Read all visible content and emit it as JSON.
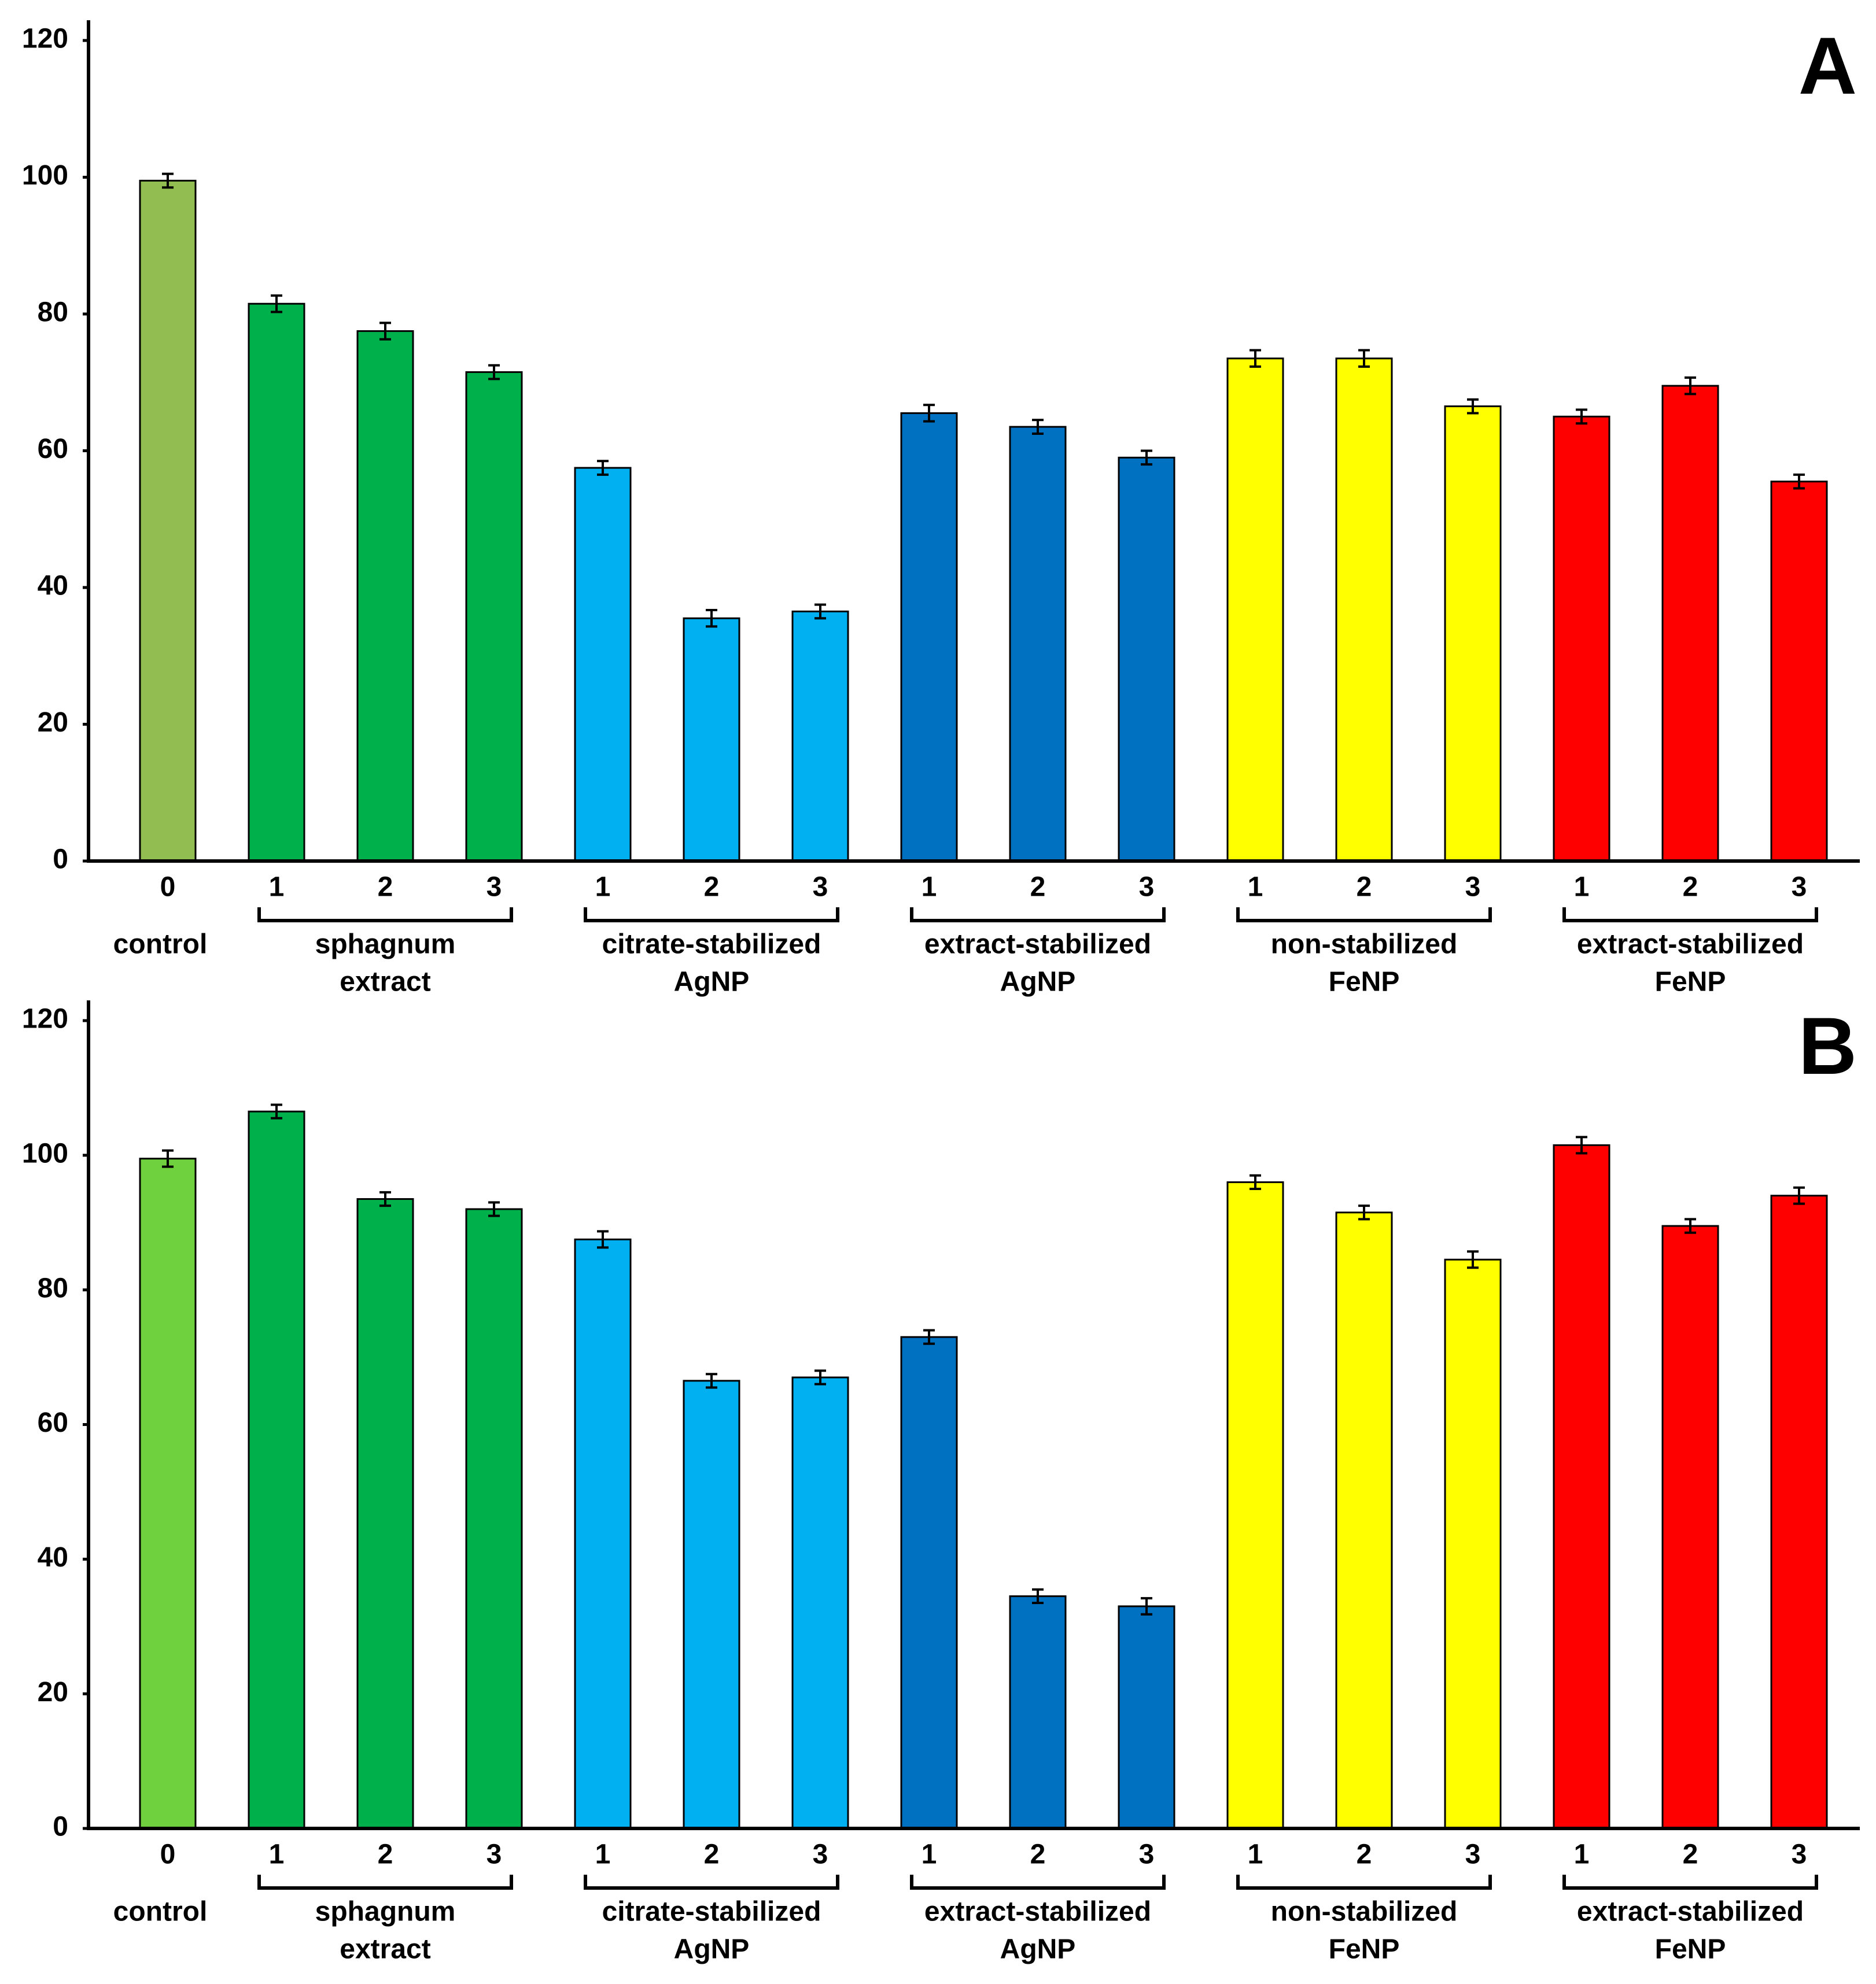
{
  "chart_data": [
    {
      "type": "bar",
      "panel_label": "A",
      "ylim": [
        0,
        120
      ],
      "yticks": [
        0,
        20,
        40,
        60,
        80,
        100,
        120
      ],
      "groups": [
        {
          "label": [
            "control"
          ],
          "categories": [
            "0"
          ],
          "values": [
            99.5
          ],
          "errors": [
            1
          ],
          "color": "#92bd50"
        },
        {
          "label": [
            "sphagnum",
            "extract"
          ],
          "categories": [
            "1",
            "2",
            "3"
          ],
          "values": [
            81.5,
            77.5,
            71.5
          ],
          "errors": [
            1.2,
            1.2,
            1
          ],
          "color": "#00b04a"
        },
        {
          "label": [
            "citrate-stabilized",
            "AgNP"
          ],
          "categories": [
            "1",
            "2",
            "3"
          ],
          "values": [
            57.5,
            35.5,
            36.5
          ],
          "errors": [
            1,
            1.2,
            1
          ],
          "color": "#00b0f0"
        },
        {
          "label": [
            "extract-stabilized",
            "AgNP"
          ],
          "categories": [
            "1",
            "2",
            "3"
          ],
          "values": [
            65.5,
            63.5,
            59
          ],
          "errors": [
            1.2,
            1,
            1
          ],
          "color": "#0070c0"
        },
        {
          "label": [
            "non-stabilized",
            "FeNP"
          ],
          "categories": [
            "1",
            "2",
            "3"
          ],
          "values": [
            73.5,
            73.5,
            66.5
          ],
          "errors": [
            1.2,
            1.2,
            1
          ],
          "color": "#ffff00"
        },
        {
          "label": [
            "extract-stabilized",
            "FeNP"
          ],
          "categories": [
            "1",
            "2",
            "3"
          ],
          "values": [
            65,
            69.5,
            55.5
          ],
          "errors": [
            1,
            1.2,
            1
          ],
          "color": "#ff0000"
        }
      ]
    },
    {
      "type": "bar",
      "panel_label": "B",
      "ylim": [
        0,
        120
      ],
      "yticks": [
        0,
        20,
        40,
        60,
        80,
        100,
        120
      ],
      "groups": [
        {
          "label": [
            "control"
          ],
          "categories": [
            "0"
          ],
          "values": [
            99.5
          ],
          "errors": [
            1.2
          ],
          "color": "#6fd13e"
        },
        {
          "label": [
            "sphagnum",
            "extract"
          ],
          "categories": [
            "1",
            "2",
            "3"
          ],
          "values": [
            106.5,
            93.5,
            92
          ],
          "errors": [
            1,
            1,
            1
          ],
          "color": "#00b04a"
        },
        {
          "label": [
            "citrate-stabilized",
            "AgNP"
          ],
          "categories": [
            "1",
            "2",
            "3"
          ],
          "values": [
            87.5,
            66.5,
            67
          ],
          "errors": [
            1.2,
            1,
            1
          ],
          "color": "#00b0f0"
        },
        {
          "label": [
            "extract-stabilized",
            "AgNP"
          ],
          "categories": [
            "1",
            "2",
            "3"
          ],
          "values": [
            73,
            34.5,
            33
          ],
          "errors": [
            1,
            1,
            1.2
          ],
          "color": "#0070c0"
        },
        {
          "label": [
            "non-stabilized",
            "FeNP"
          ],
          "categories": [
            "1",
            "2",
            "3"
          ],
          "values": [
            96,
            91.5,
            84.5
          ],
          "errors": [
            1,
            1,
            1.2
          ],
          "color": "#ffff00"
        },
        {
          "label": [
            "extract-stabilized",
            "FeNP"
          ],
          "categories": [
            "1",
            "2",
            "3"
          ],
          "values": [
            101.5,
            89.5,
            94
          ],
          "errors": [
            1.2,
            1,
            1.2
          ],
          "color": "#ff0000"
        }
      ]
    }
  ]
}
